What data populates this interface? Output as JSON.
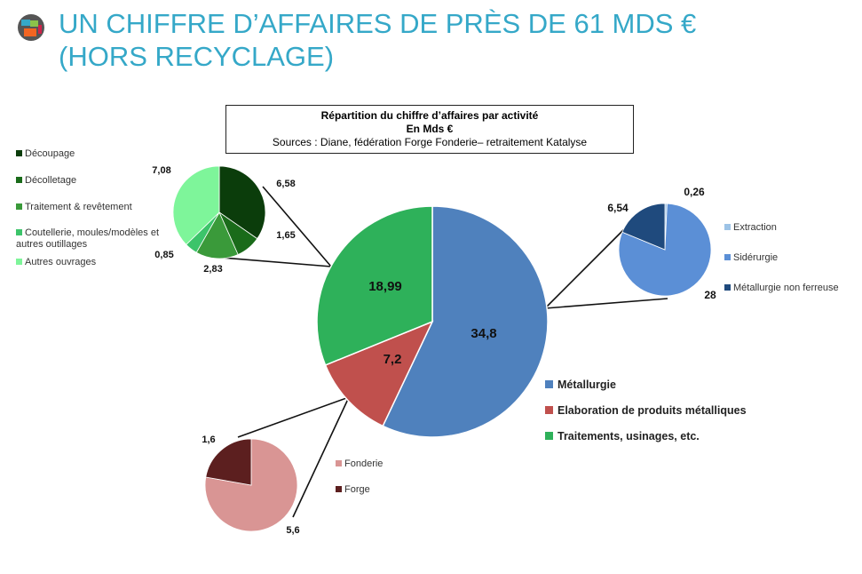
{
  "header": {
    "title_line1": "UN CHIFFRE D’AFFAIRES DE PRÈS DE 61 MDS €",
    "title_line2": "(HORS RECYCLAGE)"
  },
  "chart_data": [
    {
      "type": "pie",
      "title": "Répartition du chiffre d’affaires par activité",
      "subtitle": "En Mds €",
      "source": "Sources : Diane, fédération Forge Fonderie– retraitement Katalyse",
      "categories": [
        "Métallurgie",
        "Elaboration de produits métalliques",
        "Traitements, usinages, etc."
      ],
      "values": [
        34.8,
        7.2,
        18.99
      ],
      "labels": [
        "34,8",
        "7,2",
        "18,99"
      ],
      "colors": [
        "#4f81bd",
        "#c0504d",
        "#2eb15a"
      ],
      "legend": "bottom-right"
    },
    {
      "type": "pie",
      "categories": [
        "Découpage",
        "Décolletage",
        "Traitement & revêtement",
        "Coutellerie, moules/modèles et autres outillages",
        "Autres ouvrages"
      ],
      "values": [
        6.58,
        1.65,
        2.83,
        0.85,
        7.08
      ],
      "labels": [
        "6,58",
        "1,65",
        "2,83",
        "0,85",
        "7,08"
      ],
      "colors": [
        "#0b3d0b",
        "#1a6b1a",
        "#3a9a3a",
        "#3cc46a",
        "#7ef59a"
      ],
      "legend": "left"
    },
    {
      "type": "pie",
      "categories": [
        "Extraction",
        "Sidérurgie",
        "Métallurgie non ferreuse"
      ],
      "values": [
        0.26,
        28,
        6.54
      ],
      "labels": [
        "0,26",
        "28",
        "6,54"
      ],
      "colors": [
        "#9dc3e6",
        "#5b8fd6",
        "#1f4a7d"
      ],
      "legend": "right"
    },
    {
      "type": "pie",
      "categories": [
        "Fonderie",
        "Forge"
      ],
      "values": [
        5.6,
        1.6
      ],
      "labels": [
        "5,6",
        "1,6"
      ],
      "colors": [
        "#d99594",
        "#5c1f1f"
      ],
      "legend": "right"
    }
  ]
}
